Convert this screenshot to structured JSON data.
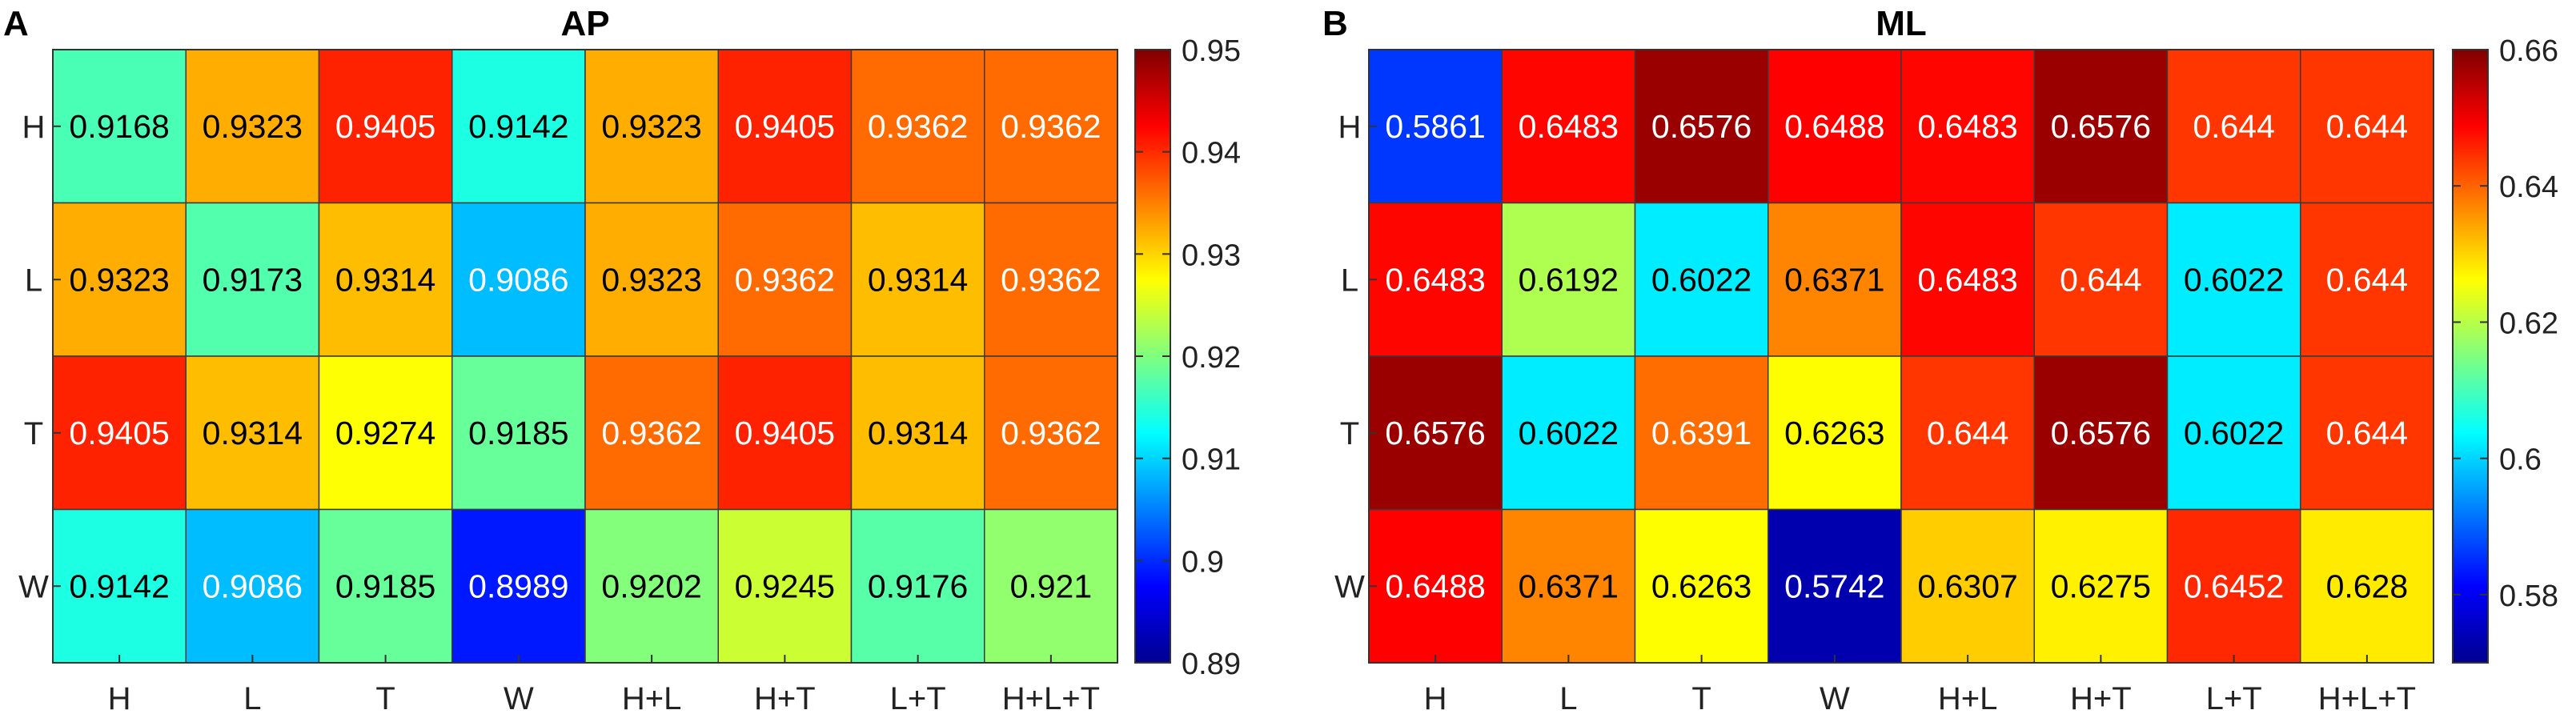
{
  "chart_data": [
    {
      "type": "heatmap",
      "panel_letter": "A",
      "title": "AP",
      "xlabel": "",
      "ylabel": "",
      "x_categories": [
        "H",
        "L",
        "T",
        "W",
        "H+L",
        "H+T",
        "L+T",
        "H+L+T"
      ],
      "y_categories": [
        "H",
        "L",
        "T",
        "W"
      ],
      "values": [
        [
          0.9168,
          0.9323,
          0.9405,
          0.9142,
          0.9323,
          0.9405,
          0.9362,
          0.9362
        ],
        [
          0.9323,
          0.9173,
          0.9314,
          0.9086,
          0.9323,
          0.9362,
          0.9314,
          0.9362
        ],
        [
          0.9405,
          0.9314,
          0.9274,
          0.9185,
          0.9362,
          0.9405,
          0.9314,
          0.9362
        ],
        [
          0.9142,
          0.9086,
          0.9185,
          0.8989,
          0.9202,
          0.9245,
          0.9176,
          0.921
        ]
      ],
      "value_labels": [
        [
          "0.9168",
          "0.9323",
          "0.9405",
          "0.9142",
          "0.9323",
          "0.9405",
          "0.9362",
          "0.9362"
        ],
        [
          "0.9323",
          "0.9173",
          "0.9314",
          "0.9086",
          "0.9323",
          "0.9362",
          "0.9314",
          "0.9362"
        ],
        [
          "0.9405",
          "0.9314",
          "0.9274",
          "0.9185",
          "0.9362",
          "0.9405",
          "0.9314",
          "0.9362"
        ],
        [
          "0.9142",
          "0.9086",
          "0.9185",
          "0.8989",
          "0.9202",
          "0.9245",
          "0.9176",
          "0.921"
        ]
      ],
      "colorbar": {
        "range": [
          0.89,
          0.95
        ],
        "ticks": [
          0.89,
          0.9,
          0.91,
          0.92,
          0.93,
          0.94,
          0.95
        ],
        "tick_labels": [
          "0.89",
          "0.9",
          "0.91",
          "0.92",
          "0.93",
          "0.94",
          "0.95"
        ],
        "colormap": "jet"
      }
    },
    {
      "type": "heatmap",
      "panel_letter": "B",
      "title": "ML",
      "xlabel": "",
      "ylabel": "",
      "x_categories": [
        "H",
        "L",
        "T",
        "W",
        "H+L",
        "H+T",
        "L+T",
        "H+L+T"
      ],
      "y_categories": [
        "H",
        "L",
        "T",
        "W"
      ],
      "values": [
        [
          0.5861,
          0.6483,
          0.6576,
          0.6488,
          0.6483,
          0.6576,
          0.644,
          0.644
        ],
        [
          0.6483,
          0.6192,
          0.6022,
          0.6371,
          0.6483,
          0.644,
          0.6022,
          0.644
        ],
        [
          0.6576,
          0.6022,
          0.6391,
          0.6263,
          0.644,
          0.6576,
          0.6022,
          0.644
        ],
        [
          0.6488,
          0.6371,
          0.6263,
          0.5742,
          0.6307,
          0.6275,
          0.6452,
          0.628
        ]
      ],
      "value_labels": [
        [
          "0.5861",
          "0.6483",
          "0.6576",
          "0.6488",
          "0.6483",
          "0.6576",
          "0.644",
          "0.644"
        ],
        [
          "0.6483",
          "0.6192",
          "0.6022",
          "0.6371",
          "0.6483",
          "0.644",
          "0.6022",
          "0.644"
        ],
        [
          "0.6576",
          "0.6022",
          "0.6391",
          "0.6263",
          "0.644",
          "0.6576",
          "0.6022",
          "0.644"
        ],
        [
          "0.6488",
          "0.6371",
          "0.6263",
          "0.5742",
          "0.6307",
          "0.6275",
          "0.6452",
          "0.628"
        ]
      ],
      "colorbar": {
        "range": [
          0.57,
          0.66
        ],
        "ticks": [
          0.58,
          0.6,
          0.62,
          0.64,
          0.66
        ],
        "tick_labels": [
          "0.58",
          "0.6",
          "0.62",
          "0.64",
          "0.66"
        ],
        "colormap": "jet"
      }
    }
  ]
}
